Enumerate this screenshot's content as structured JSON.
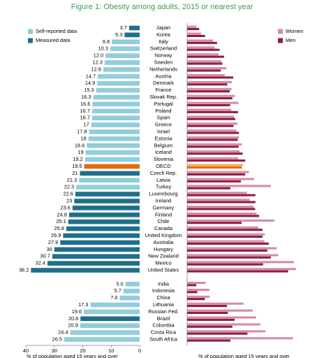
{
  "chart_data": [
    {
      "type": "hbar",
      "title": "Figure 1: Obesity among adults, 2015 or nearest year",
      "categories": [
        "Japan",
        "Korea",
        "Italy",
        "Switzerland",
        "Norway",
        "Sweden",
        "Netherlands",
        "Austria",
        "Denmark",
        "France",
        "Slovak Rep.",
        "Portugal",
        "Poland",
        "Spain",
        "Greece",
        "Israel",
        "Estonia",
        "Belgium",
        "Iceland",
        "Slovenia",
        "OECD",
        "Czech Rep.",
        "Latvia",
        "Turkey",
        "Luxembourg",
        "Ireland",
        "Germany",
        "Finland",
        "Chile",
        "Canada",
        "United Kingdom",
        "Australia",
        "Hungary",
        "New Zealand",
        "Mexico",
        "United States",
        null,
        "India",
        "Indonesia",
        "China",
        "Lithuania",
        "Russian Fed.",
        "Brazil",
        "Colombia",
        "Costa Rica",
        "South Africa"
      ],
      "values": [
        3.7,
        5.3,
        9.8,
        10.3,
        12.0,
        12.3,
        12.8,
        14.7,
        14.9,
        15.3,
        16.3,
        16.6,
        16.7,
        16.7,
        17,
        17.8,
        18,
        18.6,
        19,
        19.2,
        19.5,
        21,
        21.3,
        22.3,
        22.6,
        23,
        23.6,
        24.8,
        25.1,
        25.8,
        26.9,
        27.9,
        30,
        30.7,
        32.4,
        38.2,
        null,
        5.0,
        5.7,
        7.0,
        17.3,
        19.6,
        20.8,
        20.9,
        24.4,
        26.5
      ],
      "value_labels": [
        "3.7",
        "5.3",
        "9.8",
        "10.3",
        "12.0",
        "12.3",
        "12.8",
        "14.7",
        "14.9",
        "15.3",
        "16.3",
        "16.6",
        "16.7",
        "16.7",
        "17",
        "17.8",
        "18",
        "18.6",
        "19",
        "19.2",
        "19.5",
        "21",
        "21.3",
        "22.3",
        "22.6",
        "23",
        "23.6",
        "24.8",
        "25.1",
        "25.8",
        "26.9",
        "27.9",
        "30",
        "30.7",
        "32.4",
        "38.2",
        null,
        "5.0",
        "5.7",
        "7.0",
        "17.3",
        "19.6",
        "20.8",
        "20.9",
        "24.4",
        "26.5"
      ],
      "bar_colors": [
        "#1f6f8b",
        "#1f6f8b",
        "#92cddc",
        "#92cddc",
        "#92cddc",
        "#92cddc",
        "#92cddc",
        "#92cddc",
        "#92cddc",
        "#92cddc",
        "#92cddc",
        "#92cddc",
        "#92cddc",
        "#92cddc",
        "#92cddc",
        "#92cddc",
        "#92cddc",
        "#92cddc",
        "#92cddc",
        "#92cddc",
        "#e46c0a",
        "#1f6f8b",
        "#92cddc",
        "#92cddc",
        "#1f6f8b",
        "#1f6f8b",
        "#1f6f8b",
        "#1f6f8b",
        "#1f6f8b",
        "#1f6f8b",
        "#1f6f8b",
        "#1f6f8b",
        "#1f6f8b",
        "#1f6f8b",
        "#1f6f8b",
        "#1f6f8b",
        null,
        "#92cddc",
        "#92cddc",
        "#92cddc",
        "#92cddc",
        "#92cddc",
        "#1f6f8b",
        "#92cddc",
        "#92cddc",
        "#92cddc"
      ],
      "legend": [
        {
          "name": "Self-reported data",
          "color": "#92cddc"
        },
        {
          "name": "Measured data",
          "color": "#1f6f8b"
        }
      ],
      "xlim": [
        0,
        40
      ],
      "x_reversed": true,
      "xticks": [
        0,
        10,
        20,
        30,
        40
      ],
      "xlabel": "% of population aged 15 years and over"
    },
    {
      "type": "grouped-hbar",
      "xlim": [
        0,
        40
      ],
      "xlabel": "% of population aged 15 years and over",
      "series": [
        {
          "name": "Women",
          "color": "#d98aa6",
          "values": [
            3.3,
            4.9,
            9.1,
            9.7,
            11.0,
            12.1,
            13.8,
            13.2,
            15.7,
            15.6,
            16.8,
            18.0,
            15.5,
            16.5,
            17.7,
            17.3,
            18.2,
            19.2,
            18.5,
            18.0,
            19.6,
            21.7,
            23.5,
            29.4,
            21.0,
            22.0,
            23.3,
            24.4,
            30.7,
            25.0,
            27.3,
            27.1,
            31.5,
            32.0,
            37.5,
            38.3,
            null,
            6.5,
            7.8,
            7.9,
            19.8,
            23.0,
            24.2,
            25.7,
            27.5,
            37.2
          ],
          "colors": [
            "#d98aa6",
            "#d98aa6",
            "#d98aa6",
            "#d98aa6",
            "#d98aa6",
            "#d98aa6",
            "#d98aa6",
            "#d98aa6",
            "#d98aa6",
            "#d98aa6",
            "#d98aa6",
            "#d98aa6",
            "#d98aa6",
            "#d98aa6",
            "#d98aa6",
            "#d98aa6",
            "#d98aa6",
            "#d98aa6",
            "#d98aa6",
            "#d98aa6",
            "#f9a65a",
            "#d98aa6",
            "#d98aa6",
            "#d98aa6",
            "#d98aa6",
            "#d98aa6",
            "#d98aa6",
            "#d98aa6",
            "#d98aa6",
            "#d98aa6",
            "#d98aa6",
            "#d98aa6",
            "#d98aa6",
            "#d98aa6",
            "#d98aa6",
            "#d98aa6",
            null,
            "#d98aa6",
            "#d98aa6",
            "#d98aa6",
            "#d98aa6",
            "#d98aa6",
            "#d98aa6",
            "#d98aa6",
            "#d98aa6",
            "#d98aa6"
          ]
        },
        {
          "name": "Men",
          "color": "#8b2040",
          "values": [
            4.2,
            6.3,
            10.5,
            11.4,
            13.0,
            12.4,
            11.8,
            16.2,
            14.1,
            15.0,
            15.9,
            15.1,
            17.9,
            16.9,
            16.3,
            18.2,
            17.8,
            18.1,
            19.5,
            20.4,
            19.2,
            20.4,
            18.9,
            15.2,
            24.0,
            24.0,
            23.9,
            25.3,
            19.2,
            26.5,
            26.5,
            28.7,
            28.2,
            29.4,
            26.7,
            35.5,
            null,
            3.2,
            3.6,
            6.2,
            14.0,
            14.3,
            16.7,
            15.9,
            21.2,
            15.2
          ],
          "colors": [
            "#8b2040",
            "#8b2040",
            "#8b2040",
            "#8b2040",
            "#8b2040",
            "#8b2040",
            "#8b2040",
            "#8b2040",
            "#8b2040",
            "#8b2040",
            "#8b2040",
            "#8b2040",
            "#8b2040",
            "#8b2040",
            "#8b2040",
            "#8b2040",
            "#8b2040",
            "#8b2040",
            "#8b2040",
            "#8b2040",
            "#e46c0a",
            "#8b2040",
            "#8b2040",
            "#8b2040",
            "#8b2040",
            "#8b2040",
            "#8b2040",
            "#8b2040",
            "#8b2040",
            "#8b2040",
            "#8b2040",
            "#8b2040",
            "#8b2040",
            "#8b2040",
            "#8b2040",
            "#8b2040",
            null,
            "#8b2040",
            "#8b2040",
            "#8b2040",
            "#8b2040",
            "#8b2040",
            "#8b2040",
            "#8b2040",
            "#8b2040",
            "#8b2040"
          ]
        }
      ]
    }
  ]
}
